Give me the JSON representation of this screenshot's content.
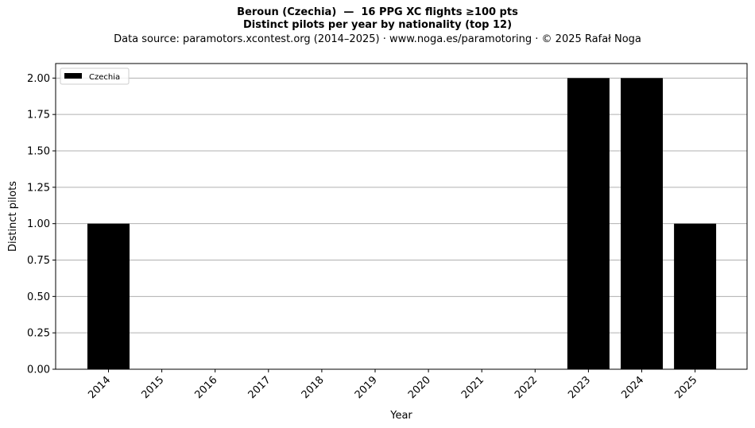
{
  "header": {
    "title_line1": "Beroun (Czechia)  —  16 PPG XC flights ≥100 pts",
    "title_line2": "Distinct pilots per year by nationality (top 12)",
    "source_line": "Data source: paramotors.xcontest.org (2014–2025)  ·  www.noga.es/paramotoring  ·  © 2025 Rafał Noga"
  },
  "chart_data": {
    "type": "bar",
    "categories": [
      "2014",
      "2015",
      "2016",
      "2017",
      "2018",
      "2019",
      "2020",
      "2021",
      "2022",
      "2023",
      "2024",
      "2025"
    ],
    "series": [
      {
        "name": "Czechia",
        "values": [
          1,
          0,
          0,
          0,
          0,
          0,
          0,
          0,
          0,
          2,
          2,
          1
        ],
        "color": "#000000"
      }
    ],
    "xlabel": "Year",
    "ylabel": "Distinct pilots",
    "ylim": [
      0,
      2.1
    ],
    "yticks": [
      "0.00",
      "0.25",
      "0.50",
      "0.75",
      "1.00",
      "1.25",
      "1.50",
      "1.75",
      "2.00"
    ],
    "grid": "y",
    "grid_color": "#b0b0b0",
    "legend_position": "top-left"
  }
}
